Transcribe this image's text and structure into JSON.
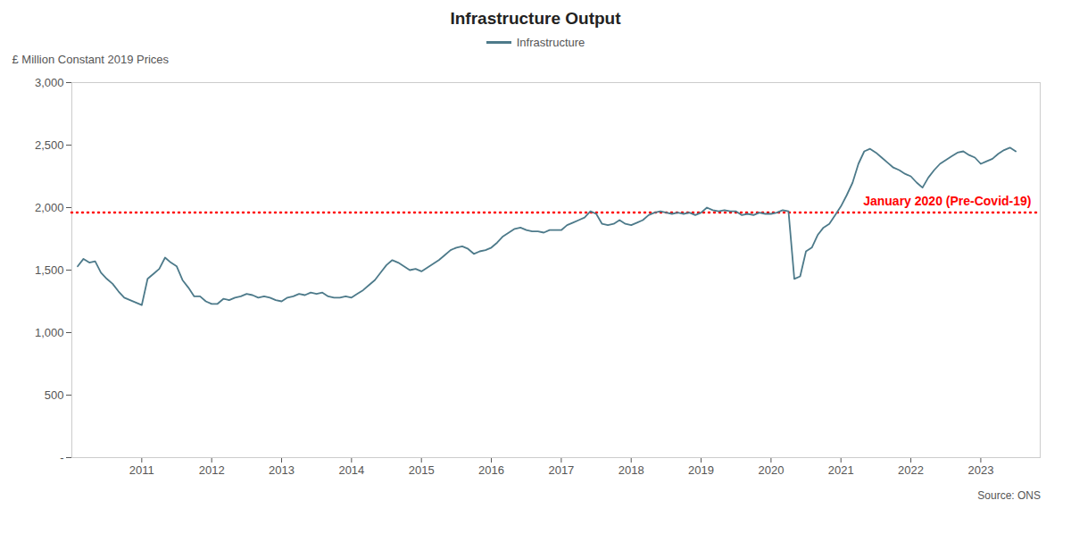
{
  "chart_data": {
    "type": "line",
    "title": "Infrastructure Output",
    "ylabel": "£ Million Constant 2019 Prices",
    "source": "Source: ONS",
    "x": [
      2010.083333,
      2010.166667,
      2010.25,
      2010.333333,
      2010.416667,
      2010.5,
      2010.583333,
      2010.666667,
      2010.75,
      2010.833333,
      2010.916667,
      2011,
      2011.083333,
      2011.166667,
      2011.25,
      2011.333333,
      2011.416667,
      2011.5,
      2011.583333,
      2011.666667,
      2011.75,
      2011.833333,
      2011.916667,
      2012,
      2012.083333,
      2012.166667,
      2012.25,
      2012.333333,
      2012.416667,
      2012.5,
      2012.583333,
      2012.666667,
      2012.75,
      2012.833333,
      2012.916667,
      2013,
      2013.083333,
      2013.166667,
      2013.25,
      2013.333333,
      2013.416667,
      2013.5,
      2013.583333,
      2013.666667,
      2013.75,
      2013.833333,
      2013.916667,
      2014,
      2014.083333,
      2014.166667,
      2014.25,
      2014.333333,
      2014.416667,
      2014.5,
      2014.583333,
      2014.666667,
      2014.75,
      2014.833333,
      2014.916667,
      2015,
      2015.083333,
      2015.166667,
      2015.25,
      2015.333333,
      2015.416667,
      2015.5,
      2015.583333,
      2015.666667,
      2015.75,
      2015.833333,
      2015.916667,
      2016,
      2016.083333,
      2016.166667,
      2016.25,
      2016.333333,
      2016.416667,
      2016.5,
      2016.583333,
      2016.666667,
      2016.75,
      2016.833333,
      2016.916667,
      2017,
      2017.083333,
      2017.166667,
      2017.25,
      2017.333333,
      2017.416667,
      2017.5,
      2017.583333,
      2017.666667,
      2017.75,
      2017.833333,
      2017.916667,
      2018,
      2018.083333,
      2018.166667,
      2018.25,
      2018.333333,
      2018.416667,
      2018.5,
      2018.583333,
      2018.666667,
      2018.75,
      2018.833333,
      2018.916667,
      2019,
      2019.083333,
      2019.166667,
      2019.25,
      2019.333333,
      2019.416667,
      2019.5,
      2019.583333,
      2019.666667,
      2019.75,
      2019.833333,
      2019.916667,
      2020,
      2020.083333,
      2020.166667,
      2020.25,
      2020.333333,
      2020.416667,
      2020.5,
      2020.583333,
      2020.666667,
      2020.75,
      2020.833333,
      2020.916667,
      2021,
      2021.083333,
      2021.166667,
      2021.25,
      2021.333333,
      2021.416667,
      2021.5,
      2021.583333,
      2021.666667,
      2021.75,
      2021.833333,
      2021.916667,
      2022,
      2022.083333,
      2022.166667,
      2022.25,
      2022.333333,
      2022.416667,
      2022.5,
      2022.583333,
      2022.666667,
      2022.75,
      2022.833333,
      2022.916667,
      2023,
      2023.083333,
      2023.166667,
      2023.25,
      2023.333333,
      2023.416667,
      2023.5
    ],
    "series": [
      {
        "name": "Infrastructure",
        "color": "#4d7a8a",
        "values": [
          1530,
          1590,
          1560,
          1570,
          1480,
          1430,
          1390,
          1330,
          1280,
          1260,
          1240,
          1220,
          1430,
          1470,
          1510,
          1600,
          1560,
          1530,
          1420,
          1360,
          1290,
          1290,
          1250,
          1230,
          1230,
          1270,
          1260,
          1280,
          1290,
          1310,
          1300,
          1280,
          1290,
          1280,
          1260,
          1250,
          1280,
          1290,
          1310,
          1300,
          1320,
          1310,
          1320,
          1290,
          1280,
          1280,
          1290,
          1280,
          1310,
          1340,
          1380,
          1420,
          1480,
          1540,
          1580,
          1560,
          1530,
          1500,
          1510,
          1490,
          1520,
          1550,
          1580,
          1620,
          1660,
          1680,
          1690,
          1670,
          1630,
          1650,
          1660,
          1680,
          1720,
          1770,
          1800,
          1830,
          1840,
          1820,
          1810,
          1810,
          1800,
          1820,
          1820,
          1820,
          1860,
          1880,
          1900,
          1920,
          1970,
          1950,
          1870,
          1860,
          1870,
          1900,
          1870,
          1860,
          1880,
          1900,
          1940,
          1960,
          1970,
          1960,
          1950,
          1960,
          1950,
          1960,
          1940,
          1960,
          2000,
          1980,
          1970,
          1980,
          1970,
          1970,
          1940,
          1950,
          1940,
          1960,
          1950,
          1950,
          1960,
          1980,
          1970,
          1430,
          1450,
          1650,
          1680,
          1780,
          1840,
          1870,
          1940,
          2010,
          2100,
          2200,
          2350,
          2450,
          2470,
          2440,
          2400,
          2360,
          2320,
          2300,
          2270,
          2250,
          2200,
          2160,
          2240,
          2300,
          2350,
          2380,
          2410,
          2440,
          2450,
          2420,
          2400,
          2350,
          2370,
          2390,
          2430,
          2460,
          2480,
          2450
        ]
      }
    ],
    "annotations": [
      {
        "text": "January 2020 (Pre-Covid-19)",
        "y": 1960,
        "color": "#ff0000",
        "line_style": "dotted"
      }
    ],
    "xlim": [
      2010.0,
      2023.85
    ],
    "xticks": [
      2011,
      2012,
      2013,
      2014,
      2015,
      2016,
      2017,
      2018,
      2019,
      2020,
      2021,
      2022,
      2023
    ],
    "ylim": [
      0,
      3000
    ],
    "yticks": [
      {
        "value": 0,
        "label": "-"
      },
      500,
      {
        "value": 1000,
        "label": "1,000"
      },
      {
        "value": 1500,
        "label": "1,500"
      },
      {
        "value": 2000,
        "label": "2,000"
      },
      {
        "value": 2500,
        "label": "2,500"
      },
      {
        "value": 3000,
        "label": "3,000"
      }
    ],
    "grid": false
  }
}
